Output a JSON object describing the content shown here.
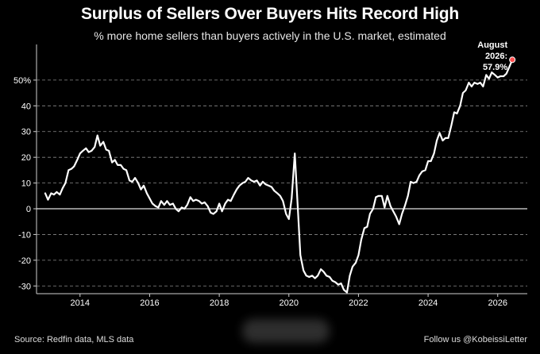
{
  "chart_data": {
    "type": "line",
    "title": "Surplus of Sellers Over Buyers Hits Record High",
    "subtitle": "% more home sellers than buyers actively in the U.S. market, estimated",
    "xlabel": "",
    "ylabel": "",
    "xlim": [
      2012.75,
      2026.85
    ],
    "ylim": [
      -33,
      62
    ],
    "y_ticks": [
      {
        "value": 50,
        "label": "50%"
      },
      {
        "value": 40,
        "label": "40"
      },
      {
        "value": 30,
        "label": "30"
      },
      {
        "value": 20,
        "label": "20"
      },
      {
        "value": 10,
        "label": "10"
      },
      {
        "value": 0,
        "label": "0"
      },
      {
        "value": -10,
        "label": "-10"
      },
      {
        "value": -20,
        "label": "-20"
      },
      {
        "value": -30,
        "label": "-30"
      }
    ],
    "x_ticks": [
      {
        "value": 2014,
        "label": "2014"
      },
      {
        "value": 2016,
        "label": "2016"
      },
      {
        "value": 2018,
        "label": "2018"
      },
      {
        "value": 2020,
        "label": "2020"
      },
      {
        "value": 2022,
        "label": "2022"
      },
      {
        "value": 2024,
        "label": "2024"
      },
      {
        "value": 2026,
        "label": "2026"
      }
    ],
    "grid": "horizontal dashed",
    "series": [
      {
        "color": "#ffffff",
        "points": [
          [
            2013.0,
            6
          ],
          [
            2013.08,
            3.5
          ],
          [
            2013.17,
            6
          ],
          [
            2013.25,
            5.5
          ],
          [
            2013.33,
            6.5
          ],
          [
            2013.42,
            5.5
          ],
          [
            2013.5,
            8
          ],
          [
            2013.58,
            10
          ],
          [
            2013.67,
            15
          ],
          [
            2013.75,
            15.5
          ],
          [
            2013.83,
            16.5
          ],
          [
            2013.92,
            19
          ],
          [
            2014.0,
            21.5
          ],
          [
            2014.08,
            22.5
          ],
          [
            2014.17,
            23.5
          ],
          [
            2014.25,
            22
          ],
          [
            2014.33,
            22.5
          ],
          [
            2014.42,
            24
          ],
          [
            2014.5,
            28.5
          ],
          [
            2014.58,
            24.5
          ],
          [
            2014.67,
            26
          ],
          [
            2014.75,
            23
          ],
          [
            2014.83,
            22.5
          ],
          [
            2014.92,
            18
          ],
          [
            2015.0,
            19
          ],
          [
            2015.08,
            17
          ],
          [
            2015.17,
            17
          ],
          [
            2015.25,
            15.5
          ],
          [
            2015.33,
            15
          ],
          [
            2015.42,
            11
          ],
          [
            2015.5,
            10.5
          ],
          [
            2015.58,
            12
          ],
          [
            2015.67,
            10
          ],
          [
            2015.75,
            7.5
          ],
          [
            2015.83,
            9
          ],
          [
            2015.92,
            6
          ],
          [
            2016.0,
            4
          ],
          [
            2016.08,
            2
          ],
          [
            2016.17,
            1
          ],
          [
            2016.25,
            0.5
          ],
          [
            2016.33,
            3
          ],
          [
            2016.42,
            1.5
          ],
          [
            2016.5,
            3
          ],
          [
            2016.58,
            1.5
          ],
          [
            2016.67,
            2
          ],
          [
            2016.75,
            0
          ],
          [
            2016.83,
            -1
          ],
          [
            2016.92,
            0.5
          ],
          [
            2017.0,
            0
          ],
          [
            2017.08,
            1.5
          ],
          [
            2017.17,
            4.5
          ],
          [
            2017.25,
            3
          ],
          [
            2017.33,
            3.5
          ],
          [
            2017.42,
            3
          ],
          [
            2017.5,
            2
          ],
          [
            2017.58,
            2.5
          ],
          [
            2017.67,
            1
          ],
          [
            2017.75,
            -1.5
          ],
          [
            2017.83,
            -2
          ],
          [
            2017.92,
            -1
          ],
          [
            2018.0,
            2
          ],
          [
            2018.08,
            -1
          ],
          [
            2018.17,
            2
          ],
          [
            2018.25,
            3.5
          ],
          [
            2018.33,
            3
          ],
          [
            2018.42,
            5.5
          ],
          [
            2018.5,
            7.5
          ],
          [
            2018.58,
            9
          ],
          [
            2018.67,
            10
          ],
          [
            2018.75,
            10.5
          ],
          [
            2018.83,
            12
          ],
          [
            2018.92,
            11
          ],
          [
            2019.0,
            10.5
          ],
          [
            2019.08,
            11
          ],
          [
            2019.17,
            9
          ],
          [
            2019.25,
            10.5
          ],
          [
            2019.33,
            9.5
          ],
          [
            2019.42,
            9
          ],
          [
            2019.5,
            8.5
          ],
          [
            2019.58,
            7
          ],
          [
            2019.67,
            6
          ],
          [
            2019.75,
            5
          ],
          [
            2019.83,
            3
          ],
          [
            2019.92,
            -2
          ],
          [
            2020.0,
            -4
          ],
          [
            2020.08,
            4
          ],
          [
            2020.17,
            21.5
          ],
          [
            2020.25,
            2
          ],
          [
            2020.33,
            -18
          ],
          [
            2020.42,
            -24
          ],
          [
            2020.5,
            -26
          ],
          [
            2020.58,
            -26.5
          ],
          [
            2020.67,
            -26
          ],
          [
            2020.75,
            -27
          ],
          [
            2020.83,
            -26
          ],
          [
            2020.92,
            -23.5
          ],
          [
            2021.0,
            -24.5
          ],
          [
            2021.08,
            -26
          ],
          [
            2021.17,
            -26.5
          ],
          [
            2021.25,
            -28
          ],
          [
            2021.33,
            -28.5
          ],
          [
            2021.42,
            -29.5
          ],
          [
            2021.5,
            -29
          ],
          [
            2021.58,
            -31.5
          ],
          [
            2021.67,
            -32.5
          ],
          [
            2021.75,
            -26
          ],
          [
            2021.83,
            -22.5
          ],
          [
            2021.92,
            -21
          ],
          [
            2022.0,
            -18
          ],
          [
            2022.08,
            -12
          ],
          [
            2022.17,
            -7.5
          ],
          [
            2022.25,
            -7
          ],
          [
            2022.33,
            -2
          ],
          [
            2022.42,
            0
          ],
          [
            2022.5,
            4.5
          ],
          [
            2022.58,
            5
          ],
          [
            2022.67,
            5
          ],
          [
            2022.75,
            0.5
          ],
          [
            2022.83,
            5
          ],
          [
            2022.92,
            1
          ],
          [
            2023.0,
            -1
          ],
          [
            2023.08,
            -3
          ],
          [
            2023.17,
            -6
          ],
          [
            2023.25,
            -2
          ],
          [
            2023.33,
            1
          ],
          [
            2023.42,
            5
          ],
          [
            2023.5,
            10.5
          ],
          [
            2023.58,
            10
          ],
          [
            2023.67,
            10.5
          ],
          [
            2023.75,
            13
          ],
          [
            2023.83,
            14.5
          ],
          [
            2023.92,
            15
          ],
          [
            2024.0,
            18.5
          ],
          [
            2024.08,
            18.5
          ],
          [
            2024.17,
            21.5
          ],
          [
            2024.25,
            26.5
          ],
          [
            2024.33,
            29.5
          ],
          [
            2024.42,
            26.5
          ],
          [
            2024.5,
            27.5
          ],
          [
            2024.58,
            27.5
          ],
          [
            2024.67,
            32.5
          ],
          [
            2024.75,
            37.5
          ],
          [
            2024.83,
            37
          ],
          [
            2024.92,
            40
          ],
          [
            2025.0,
            45
          ],
          [
            2025.08,
            46
          ],
          [
            2025.17,
            49
          ],
          [
            2025.25,
            47.5
          ],
          [
            2025.33,
            49
          ],
          [
            2025.42,
            48.5
          ],
          [
            2025.5,
            49
          ],
          [
            2025.58,
            47.5
          ],
          [
            2025.67,
            52
          ],
          [
            2025.75,
            50.5
          ],
          [
            2025.83,
            53
          ],
          [
            2025.92,
            52
          ],
          [
            2026.0,
            51
          ],
          [
            2026.08,
            51.5
          ],
          [
            2026.17,
            51.5
          ],
          [
            2026.25,
            52.5
          ],
          [
            2026.33,
            55
          ],
          [
            2026.42,
            57.9
          ]
        ]
      }
    ],
    "callout": {
      "lines": [
        "August",
        "2026:",
        "57.9%"
      ],
      "value": 57.9,
      "marker_color": "#ff4d4d"
    }
  },
  "footer": {
    "source": "Source: Redfin data, MLS data",
    "follow": "Follow us @KobeissiLetter"
  }
}
